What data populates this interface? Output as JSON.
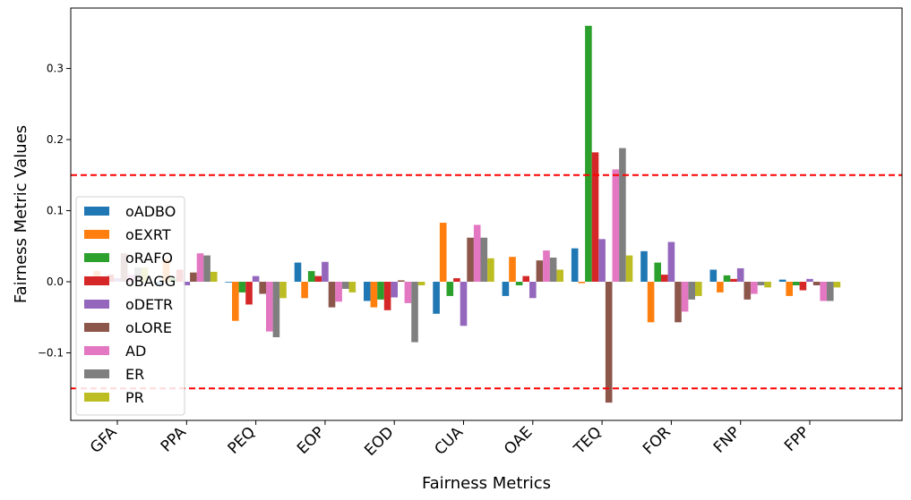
{
  "chart_data": {
    "type": "bar",
    "xlabel": "Fairness Metrics",
    "ylabel": "Fairness Metric Values",
    "categories": [
      "GFA",
      "PPA",
      "PEQ",
      "EOP",
      "EOD",
      "CUA",
      "OAE",
      "TEQ",
      "FOR",
      "FNP",
      "FPP"
    ],
    "ylim": [
      -0.195,
      0.385
    ],
    "yticks": [
      -0.1,
      0.0,
      0.1,
      0.2,
      0.3
    ],
    "ytick_labels": [
      "−0.1",
      "0.0",
      "0.1",
      "0.2",
      "0.3"
    ],
    "grid": false,
    "legend_position": "center-left",
    "threshold_lines": {
      "values": [
        0.15,
        -0.15
      ],
      "color": "#ff0000",
      "style": "dashed"
    },
    "series": [
      {
        "name": "oADBO",
        "color": "#1f77b4",
        "values": [
          0.003,
          -0.005,
          -0.001,
          0.027,
          -0.027,
          -0.045,
          -0.02,
          0.047,
          0.043,
          0.017,
          0.003
        ]
      },
      {
        "name": "oEXRT",
        "color": "#ff7f0e",
        "values": [
          0.015,
          0.032,
          -0.055,
          -0.023,
          -0.036,
          0.083,
          0.035,
          -0.002,
          -0.057,
          -0.015,
          -0.02
        ]
      },
      {
        "name": "oRAFO",
        "color": "#2ca02c",
        "values": [
          0.005,
          0.005,
          -0.015,
          0.015,
          -0.025,
          -0.02,
          -0.005,
          0.36,
          0.027,
          0.009,
          -0.005
        ]
      },
      {
        "name": "oBAGG",
        "color": "#d62728",
        "values": [
          0.01,
          0.017,
          -0.032,
          0.008,
          -0.04,
          0.005,
          0.008,
          0.182,
          0.01,
          0.004,
          -0.012
        ]
      },
      {
        "name": "oDETR",
        "color": "#9467bd",
        "values": [
          0.005,
          -0.005,
          0.008,
          0.028,
          -0.022,
          -0.062,
          -0.023,
          0.06,
          0.056,
          0.019,
          0.004
        ]
      },
      {
        "name": "oLORE",
        "color": "#8c564b",
        "values": [
          0.04,
          0.013,
          -0.017,
          -0.036,
          0.002,
          0.062,
          0.03,
          -0.17,
          -0.057,
          -0.025,
          -0.005
        ]
      },
      {
        "name": "AD",
        "color": "#e377c2",
        "values": [
          0.01,
          0.04,
          -0.07,
          -0.028,
          -0.03,
          0.08,
          0.044,
          0.158,
          -0.042,
          -0.017,
          -0.027
        ]
      },
      {
        "name": "ER",
        "color": "#7f7f7f",
        "values": [
          0.02,
          0.037,
          -0.078,
          -0.01,
          -0.085,
          0.062,
          0.034,
          0.188,
          -0.025,
          -0.005,
          -0.027
        ]
      },
      {
        "name": "PR",
        "color": "#bcbd22",
        "values": [
          0.02,
          0.014,
          -0.023,
          -0.015,
          -0.005,
          0.033,
          0.017,
          0.037,
          -0.02,
          -0.008,
          -0.008
        ]
      }
    ]
  }
}
